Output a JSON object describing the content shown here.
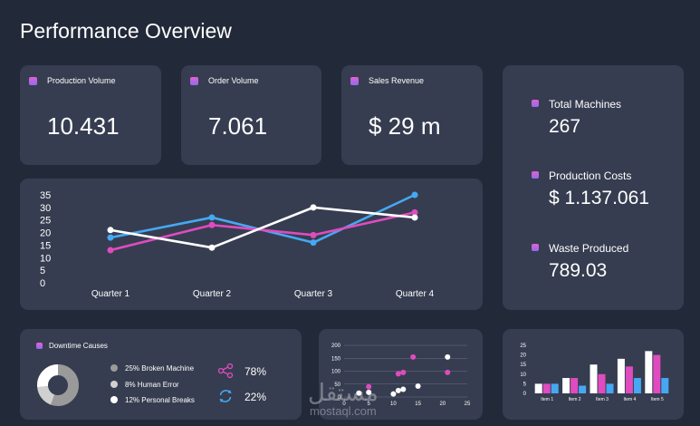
{
  "page": {
    "title": "Performance Overview"
  },
  "kpis": [
    {
      "label": "Production Volume",
      "value": "10.431"
    },
    {
      "label": "Order Volume",
      "value": "7.061"
    },
    {
      "label": "Sales Revenue",
      "value": "$ 29 m"
    }
  ],
  "side": [
    {
      "label": "Total Machines",
      "value": "267"
    },
    {
      "label": "Production Costs",
      "value": "$ 1.137.061"
    },
    {
      "label": "Waste Produced",
      "value": "789.03"
    }
  ],
  "colors": {
    "pink": "#e04bbf",
    "blue": "#46a8f2",
    "white": "#ffffff",
    "grey": "#a9a9a9",
    "card": "#363d50"
  },
  "downtime": {
    "title": "Downtime Causes",
    "items": [
      {
        "label": "25% Broken Machine",
        "color": "#9a9a9a"
      },
      {
        "label": "8% Human Error",
        "color": "#d0d0d0"
      },
      {
        "label": "12% Personal Breaks",
        "color": "#ffffff"
      }
    ],
    "share_icon": "share-icon",
    "share_value": "78%",
    "refresh_icon": "refresh-icon",
    "refresh_value": "22%"
  },
  "watermark": {
    "arabic": "مستقل",
    "domain": "mostaql.com"
  },
  "chart_data": [
    {
      "type": "line",
      "categories": [
        "Quarter 1",
        "Quarter 2",
        "Quarter 3",
        "Quarter 4"
      ],
      "ylim": [
        0,
        35
      ],
      "yticks": [
        0,
        5,
        10,
        15,
        20,
        25,
        30,
        35
      ],
      "series": [
        {
          "name": "blue",
          "color": "#46a8f2",
          "values": [
            18,
            26,
            16,
            35
          ]
        },
        {
          "name": "pink",
          "color": "#e04bbf",
          "values": [
            13,
            23,
            19,
            28
          ]
        },
        {
          "name": "white",
          "color": "#ffffff",
          "values": [
            21,
            14,
            30,
            26
          ]
        }
      ]
    },
    {
      "type": "pie",
      "categories": [
        "Broken Machine",
        "Human Error",
        "Personal Breaks"
      ],
      "values": [
        25,
        8,
        12
      ]
    },
    {
      "type": "scatter",
      "xlim": [
        0,
        25
      ],
      "ylim": [
        0,
        200
      ],
      "xticks": [
        0,
        5,
        10,
        15,
        20,
        25
      ],
      "yticks": [
        0,
        50,
        100,
        150,
        200
      ],
      "series": [
        {
          "name": "pink",
          "color": "#e04bbf",
          "points": [
            [
              5,
              40
            ],
            [
              11,
              90
            ],
            [
              12,
              95
            ],
            [
              14,
              155
            ],
            [
              21,
              95
            ]
          ]
        },
        {
          "name": "white",
          "color": "#ffffff",
          "points": [
            [
              3,
              15
            ],
            [
              5,
              18
            ],
            [
              10,
              12
            ],
            [
              11,
              25
            ],
            [
              12,
              30
            ],
            [
              15,
              42
            ],
            [
              21,
              155
            ]
          ]
        }
      ]
    },
    {
      "type": "bar",
      "categories": [
        "Item 1",
        "Item 2",
        "Item 3",
        "Item 4",
        "Item 5"
      ],
      "ylim": [
        0,
        25
      ],
      "yticks": [
        0,
        5,
        10,
        15,
        20,
        25
      ],
      "series": [
        {
          "name": "white",
          "color": "#ffffff",
          "values": [
            5,
            8,
            15,
            18,
            22
          ]
        },
        {
          "name": "pink",
          "color": "#e04bbf",
          "values": [
            5,
            8,
            10,
            14,
            20
          ]
        },
        {
          "name": "blue",
          "color": "#46a8f2",
          "values": [
            5,
            4,
            5,
            8,
            8
          ]
        }
      ]
    }
  ]
}
